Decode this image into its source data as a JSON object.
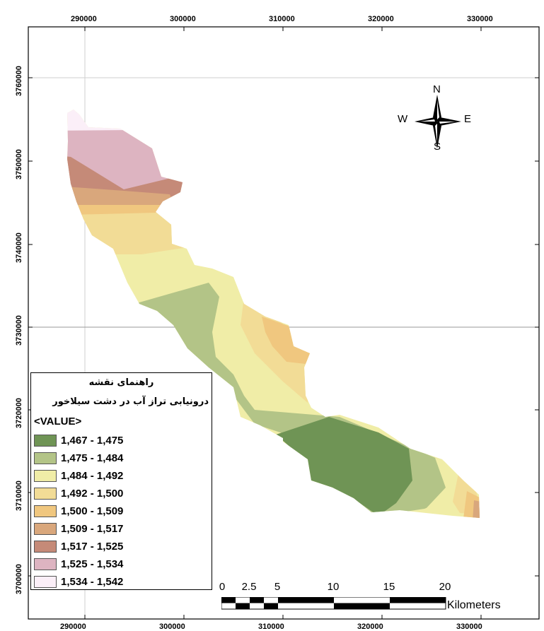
{
  "x_ticks": [
    "290000",
    "300000",
    "310000",
    "320000",
    "330000"
  ],
  "y_ticks": [
    "3760000",
    "3750000",
    "3740000",
    "3730000",
    "3720000",
    "3710000",
    "3700000"
  ],
  "north_arrow": {
    "n": "N",
    "s": "S",
    "e": "E",
    "w": "W"
  },
  "legend": {
    "title": "راهنمای نقشه",
    "subtitle": "درونیابی تراز آب در دشت سیلاخور",
    "field": "<VALUE>",
    "classes": [
      {
        "label": "1,467 - 1,475",
        "color": "#6f9455"
      },
      {
        "label": "1,475 - 1,484",
        "color": "#b3c487"
      },
      {
        "label": "1,484 - 1,492",
        "color": "#f0eda7"
      },
      {
        "label": "1,492 - 1,500",
        "color": "#f2dc96"
      },
      {
        "label": "1,500 - 1,509",
        "color": "#f0c77f"
      },
      {
        "label": "1,509 - 1,517",
        "color": "#d9a77c"
      },
      {
        "label": "1,517 - 1,525",
        "color": "#c58a78"
      },
      {
        "label": "1,525 - 1,534",
        "color": "#ddb4c1"
      },
      {
        "label": "1,534 - 1,542",
        "color": "#fbeff8"
      }
    ]
  },
  "scale_bar": {
    "labels": [
      "0",
      "2.5",
      "5",
      "10",
      "15",
      "20"
    ],
    "unit": "Kilometers"
  }
}
